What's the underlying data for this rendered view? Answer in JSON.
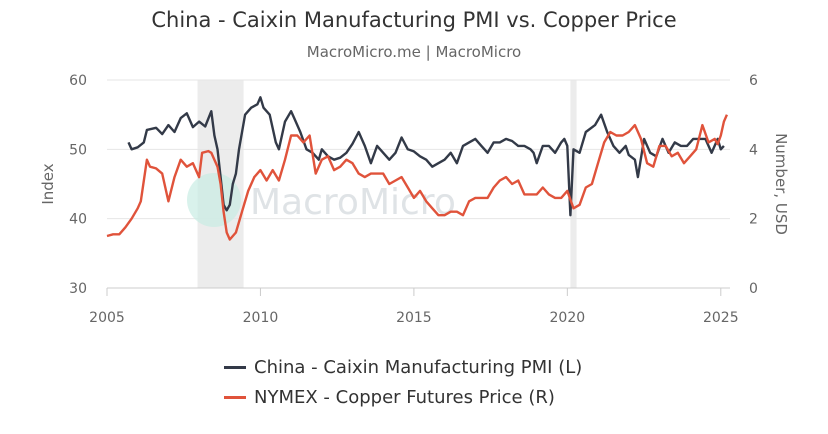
{
  "header": {
    "title": "China - Caixin Manufacturing PMI vs. Copper Price",
    "subtitle": "MacroMicro.me | MacroMicro"
  },
  "watermark": {
    "text": "MacroMicro",
    "icon": "macromicro-logo-icon"
  },
  "legend": [
    {
      "label": "China - Caixin Manufacturing PMI (L)",
      "color": "#333a48"
    },
    {
      "label": "NYMEX - Copper Futures Price (R)",
      "color": "#e0533b"
    }
  ],
  "chart_data": {
    "type": "line",
    "title": "China - Caixin Manufacturing PMI vs. Copper Price",
    "subtitle": "MacroMicro.me | MacroMicro",
    "x_ticks": [
      "2005",
      "2010",
      "2015",
      "2020",
      "2025"
    ],
    "xlim": [
      2005,
      2025.3
    ],
    "y_left": {
      "label": "Index",
      "ticks": [
        "30",
        "40",
        "50",
        "60"
      ],
      "lim": [
        30,
        60
      ]
    },
    "y_right": {
      "label": "Number, USD",
      "ticks": [
        "0",
        "2",
        "4",
        "6"
      ],
      "lim": [
        0,
        6
      ]
    },
    "grid": true,
    "legend_position": "bottom",
    "shaded_periods": [
      [
        2007.95,
        2009.45
      ],
      [
        2020.1,
        2020.3
      ]
    ],
    "series": [
      {
        "name": "China - Caixin Manufacturing PMI (L)",
        "axis": "left",
        "color": "#333a48",
        "points": [
          [
            2005.7,
            51.0
          ],
          [
            2005.8,
            50.0
          ],
          [
            2006.0,
            50.3
          ],
          [
            2006.2,
            51.0
          ],
          [
            2006.3,
            52.8
          ],
          [
            2006.6,
            53.1
          ],
          [
            2006.8,
            52.2
          ],
          [
            2007.0,
            53.5
          ],
          [
            2007.2,
            52.5
          ],
          [
            2007.4,
            54.5
          ],
          [
            2007.6,
            55.2
          ],
          [
            2007.8,
            53.2
          ],
          [
            2008.0,
            54.0
          ],
          [
            2008.2,
            53.3
          ],
          [
            2008.4,
            55.5
          ],
          [
            2008.5,
            52.0
          ],
          [
            2008.6,
            50.0
          ],
          [
            2008.7,
            46.0
          ],
          [
            2008.8,
            42.0
          ],
          [
            2008.9,
            41.2
          ],
          [
            2009.0,
            42.0
          ],
          [
            2009.1,
            45.0
          ],
          [
            2009.2,
            46.5
          ],
          [
            2009.3,
            50.0
          ],
          [
            2009.5,
            55.0
          ],
          [
            2009.7,
            56.0
          ],
          [
            2009.9,
            56.5
          ],
          [
            2010.0,
            57.5
          ],
          [
            2010.1,
            56.0
          ],
          [
            2010.3,
            55.0
          ],
          [
            2010.5,
            51.0
          ],
          [
            2010.6,
            50.0
          ],
          [
            2010.8,
            54.0
          ],
          [
            2011.0,
            55.5
          ],
          [
            2011.1,
            54.5
          ],
          [
            2011.3,
            52.5
          ],
          [
            2011.5,
            50.0
          ],
          [
            2011.7,
            49.5
          ],
          [
            2011.9,
            48.5
          ],
          [
            2012.0,
            50.0
          ],
          [
            2012.2,
            49.0
          ],
          [
            2012.4,
            48.5
          ],
          [
            2012.6,
            48.8
          ],
          [
            2012.8,
            49.5
          ],
          [
            2013.0,
            50.8
          ],
          [
            2013.2,
            52.5
          ],
          [
            2013.4,
            50.5
          ],
          [
            2013.6,
            48.0
          ],
          [
            2013.8,
            50.5
          ],
          [
            2014.0,
            49.5
          ],
          [
            2014.2,
            48.5
          ],
          [
            2014.4,
            49.5
          ],
          [
            2014.6,
            51.7
          ],
          [
            2014.8,
            50.0
          ],
          [
            2015.0,
            49.7
          ],
          [
            2015.2,
            49.0
          ],
          [
            2015.4,
            48.5
          ],
          [
            2015.6,
            47.5
          ],
          [
            2015.8,
            48.0
          ],
          [
            2016.0,
            48.5
          ],
          [
            2016.2,
            49.5
          ],
          [
            2016.4,
            48.0
          ],
          [
            2016.6,
            50.5
          ],
          [
            2016.8,
            51.0
          ],
          [
            2017.0,
            51.5
          ],
          [
            2017.2,
            50.5
          ],
          [
            2017.4,
            49.5
          ],
          [
            2017.6,
            51.0
          ],
          [
            2017.8,
            51.0
          ],
          [
            2018.0,
            51.5
          ],
          [
            2018.2,
            51.2
          ],
          [
            2018.4,
            50.5
          ],
          [
            2018.6,
            50.5
          ],
          [
            2018.8,
            50.0
          ],
          [
            2018.9,
            49.5
          ],
          [
            2019.0,
            48.0
          ],
          [
            2019.2,
            50.5
          ],
          [
            2019.4,
            50.5
          ],
          [
            2019.6,
            49.5
          ],
          [
            2019.8,
            51.0
          ],
          [
            2019.9,
            51.5
          ],
          [
            2020.0,
            50.5
          ],
          [
            2020.1,
            40.5
          ],
          [
            2020.2,
            50.0
          ],
          [
            2020.4,
            49.5
          ],
          [
            2020.6,
            52.5
          ],
          [
            2020.9,
            53.5
          ],
          [
            2021.1,
            55.0
          ],
          [
            2021.3,
            52.5
          ],
          [
            2021.5,
            50.5
          ],
          [
            2021.7,
            49.5
          ],
          [
            2021.9,
            50.5
          ],
          [
            2022.0,
            49.2
          ],
          [
            2022.2,
            48.5
          ],
          [
            2022.3,
            46.0
          ],
          [
            2022.5,
            51.5
          ],
          [
            2022.7,
            49.5
          ],
          [
            2022.9,
            49.0
          ],
          [
            2023.1,
            51.5
          ],
          [
            2023.3,
            49.5
          ],
          [
            2023.5,
            51.0
          ],
          [
            2023.7,
            50.5
          ],
          [
            2023.9,
            50.5
          ],
          [
            2024.1,
            51.5
          ],
          [
            2024.3,
            51.5
          ],
          [
            2024.5,
            51.5
          ],
          [
            2024.7,
            49.5
          ],
          [
            2024.9,
            51.5
          ],
          [
            2025.0,
            50.0
          ],
          [
            2025.1,
            50.5
          ]
        ]
      },
      {
        "name": "NYMEX - Copper Futures Price (R)",
        "axis": "right",
        "color": "#e0533b",
        "points": [
          [
            2005.0,
            1.5
          ],
          [
            2005.2,
            1.55
          ],
          [
            2005.4,
            1.55
          ],
          [
            2005.6,
            1.75
          ],
          [
            2005.8,
            2.0
          ],
          [
            2006.0,
            2.3
          ],
          [
            2006.1,
            2.5
          ],
          [
            2006.3,
            3.7
          ],
          [
            2006.4,
            3.5
          ],
          [
            2006.6,
            3.45
          ],
          [
            2006.8,
            3.3
          ],
          [
            2007.0,
            2.5
          ],
          [
            2007.2,
            3.2
          ],
          [
            2007.4,
            3.7
          ],
          [
            2007.6,
            3.5
          ],
          [
            2007.8,
            3.6
          ],
          [
            2008.0,
            3.2
          ],
          [
            2008.1,
            3.9
          ],
          [
            2008.3,
            3.95
          ],
          [
            2008.4,
            3.9
          ],
          [
            2008.6,
            3.5
          ],
          [
            2008.7,
            3.0
          ],
          [
            2008.8,
            2.2
          ],
          [
            2008.9,
            1.6
          ],
          [
            2009.0,
            1.4
          ],
          [
            2009.2,
            1.6
          ],
          [
            2009.4,
            2.2
          ],
          [
            2009.6,
            2.8
          ],
          [
            2009.8,
            3.2
          ],
          [
            2010.0,
            3.4
          ],
          [
            2010.2,
            3.1
          ],
          [
            2010.4,
            3.4
          ],
          [
            2010.6,
            3.1
          ],
          [
            2010.8,
            3.7
          ],
          [
            2011.0,
            4.4
          ],
          [
            2011.2,
            4.4
          ],
          [
            2011.4,
            4.2
          ],
          [
            2011.6,
            4.4
          ],
          [
            2011.8,
            3.3
          ],
          [
            2012.0,
            3.7
          ],
          [
            2012.2,
            3.8
          ],
          [
            2012.4,
            3.4
          ],
          [
            2012.6,
            3.5
          ],
          [
            2012.8,
            3.7
          ],
          [
            2013.0,
            3.6
          ],
          [
            2013.2,
            3.3
          ],
          [
            2013.4,
            3.2
          ],
          [
            2013.6,
            3.3
          ],
          [
            2013.8,
            3.3
          ],
          [
            2014.0,
            3.3
          ],
          [
            2014.2,
            3.0
          ],
          [
            2014.4,
            3.1
          ],
          [
            2014.6,
            3.2
          ],
          [
            2014.8,
            2.9
          ],
          [
            2015.0,
            2.6
          ],
          [
            2015.2,
            2.8
          ],
          [
            2015.4,
            2.5
          ],
          [
            2015.6,
            2.3
          ],
          [
            2015.8,
            2.1
          ],
          [
            2016.0,
            2.1
          ],
          [
            2016.2,
            2.2
          ],
          [
            2016.4,
            2.2
          ],
          [
            2016.6,
            2.1
          ],
          [
            2016.8,
            2.5
          ],
          [
            2017.0,
            2.6
          ],
          [
            2017.2,
            2.6
          ],
          [
            2017.4,
            2.6
          ],
          [
            2017.6,
            2.9
          ],
          [
            2017.8,
            3.1
          ],
          [
            2018.0,
            3.2
          ],
          [
            2018.2,
            3.0
          ],
          [
            2018.4,
            3.1
          ],
          [
            2018.6,
            2.7
          ],
          [
            2018.8,
            2.7
          ],
          [
            2019.0,
            2.7
          ],
          [
            2019.2,
            2.9
          ],
          [
            2019.4,
            2.7
          ],
          [
            2019.6,
            2.6
          ],
          [
            2019.8,
            2.6
          ],
          [
            2020.0,
            2.8
          ],
          [
            2020.2,
            2.3
          ],
          [
            2020.4,
            2.4
          ],
          [
            2020.6,
            2.9
          ],
          [
            2020.8,
            3.0
          ],
          [
            2021.0,
            3.6
          ],
          [
            2021.2,
            4.2
          ],
          [
            2021.4,
            4.5
          ],
          [
            2021.6,
            4.4
          ],
          [
            2021.8,
            4.4
          ],
          [
            2022.0,
            4.5
          ],
          [
            2022.2,
            4.7
          ],
          [
            2022.4,
            4.3
          ],
          [
            2022.6,
            3.6
          ],
          [
            2022.8,
            3.5
          ],
          [
            2023.0,
            4.1
          ],
          [
            2023.2,
            4.1
          ],
          [
            2023.4,
            3.8
          ],
          [
            2023.6,
            3.9
          ],
          [
            2023.8,
            3.6
          ],
          [
            2024.0,
            3.8
          ],
          [
            2024.2,
            4.0
          ],
          [
            2024.4,
            4.7
          ],
          [
            2024.6,
            4.2
          ],
          [
            2024.8,
            4.3
          ],
          [
            2024.9,
            4.15
          ],
          [
            2025.0,
            4.4
          ],
          [
            2025.1,
            4.8
          ],
          [
            2025.2,
            5.0
          ]
        ]
      }
    ]
  }
}
